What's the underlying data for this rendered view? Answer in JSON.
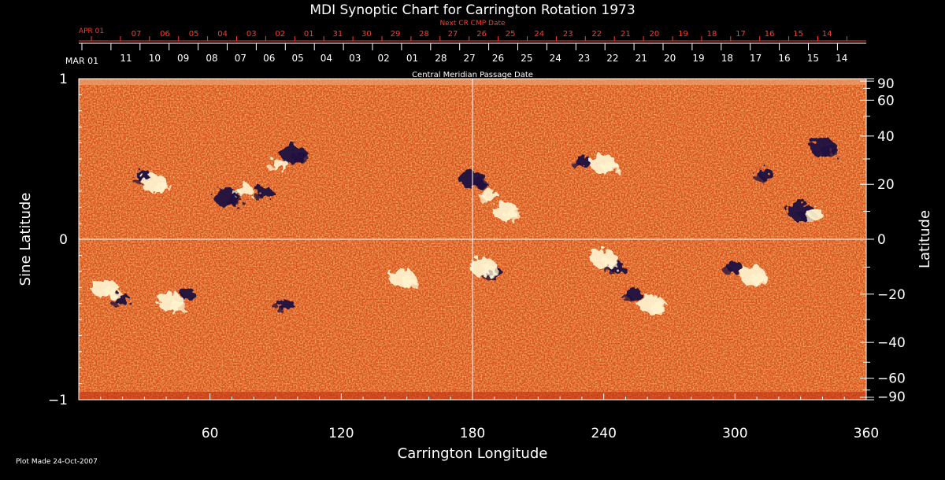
{
  "chart_data": {
    "type": "heatmap",
    "title": "MDI Synoptic Chart for Carrington Rotation 1973",
    "xlabel": "Carrington Longitude",
    "ylabel_left": "Sine Latitude",
    "ylabel_right": "Latitude",
    "xlim": [
      0,
      360
    ],
    "ylim": [
      -1,
      1
    ],
    "x_ticks": [
      60,
      120,
      180,
      240,
      300,
      360
    ],
    "y_ticks_left": [
      1,
      0,
      -1
    ],
    "y_tick_labels_left": [
      "1",
      "0",
      "−1"
    ],
    "lat_ticks_right": [
      90,
      60,
      40,
      20,
      0,
      -20,
      -40,
      -60,
      -90
    ],
    "lat_tick_labels_right": [
      "90",
      "60",
      "40",
      "20",
      "0",
      "−20",
      "−40",
      "−60",
      "−90"
    ],
    "gridlines": {
      "x": [
        180
      ],
      "y": [
        0
      ]
    },
    "top_axis": {
      "label": "Central Meridian Passage Date",
      "month_label": "MAR 01",
      "dates": [
        "11",
        "10",
        "09",
        "08",
        "07",
        "06",
        "05",
        "04",
        "03",
        "02",
        "01",
        "28",
        "27",
        "26",
        "25",
        "24",
        "23",
        "22",
        "21",
        "20",
        "19",
        "18",
        "17",
        "16",
        "15",
        "14"
      ]
    },
    "next_cr_axis": {
      "label": "Next CR CMP Date",
      "month_label": "APR 01",
      "dates": [
        "07",
        "06",
        "05",
        "04",
        "03",
        "02",
        "01",
        "31",
        "30",
        "29",
        "28",
        "27",
        "26",
        "25",
        "24",
        "23",
        "22",
        "21",
        "20",
        "19",
        "18",
        "17",
        "16",
        "15",
        "14"
      ]
    },
    "colors": {
      "background": "#000000",
      "field_base": "#d8501c",
      "positive_polarity": "#fff4d0",
      "negative_polarity": "#1a1040",
      "next_cr_text": "#ff3b2b",
      "axis": "#ffffff"
    },
    "regions": [
      {
        "lon": 30,
        "lat": 23,
        "polarity": -1
      },
      {
        "lon": 35,
        "lat": 20,
        "polarity": 1
      },
      {
        "lon": 85,
        "lat": 17,
        "polarity": -1
      },
      {
        "lon": 98,
        "lat": 32,
        "polarity": -1
      },
      {
        "lon": 92,
        "lat": 28,
        "polarity": 1
      },
      {
        "lon": 68,
        "lat": 15,
        "polarity": -1
      },
      {
        "lon": 76,
        "lat": 18,
        "polarity": 1
      },
      {
        "lon": 180,
        "lat": 22,
        "polarity": -1
      },
      {
        "lon": 188,
        "lat": 16,
        "polarity": 1
      },
      {
        "lon": 195,
        "lat": 10,
        "polarity": 1
      },
      {
        "lon": 231,
        "lat": 29,
        "polarity": -1
      },
      {
        "lon": 240,
        "lat": 28,
        "polarity": 1
      },
      {
        "lon": 314,
        "lat": 24,
        "polarity": -1
      },
      {
        "lon": 330,
        "lat": 10,
        "polarity": -1
      },
      {
        "lon": 337,
        "lat": 9,
        "polarity": 1
      },
      {
        "lon": 340,
        "lat": 35,
        "polarity": -1
      },
      {
        "lon": 20,
        "lat": -22,
        "polarity": -1
      },
      {
        "lon": 12,
        "lat": -18,
        "polarity": 1
      },
      {
        "lon": 50,
        "lat": -20,
        "polarity": -1
      },
      {
        "lon": 42,
        "lat": -23,
        "polarity": 1
      },
      {
        "lon": 190,
        "lat": -12,
        "polarity": -1
      },
      {
        "lon": 185,
        "lat": -10,
        "polarity": 1
      },
      {
        "lon": 246,
        "lat": -10,
        "polarity": -1
      },
      {
        "lon": 240,
        "lat": -7,
        "polarity": 1
      },
      {
        "lon": 254,
        "lat": -20,
        "polarity": -1
      },
      {
        "lon": 262,
        "lat": -24,
        "polarity": 1
      },
      {
        "lon": 300,
        "lat": -10,
        "polarity": -1
      },
      {
        "lon": 308,
        "lat": -13,
        "polarity": 1
      },
      {
        "lon": 95,
        "lat": -24,
        "polarity": -1
      },
      {
        "lon": 148,
        "lat": -14,
        "polarity": 1
      }
    ]
  },
  "footer": {
    "plot_made": "Plot Made 24-Oct-2007"
  }
}
